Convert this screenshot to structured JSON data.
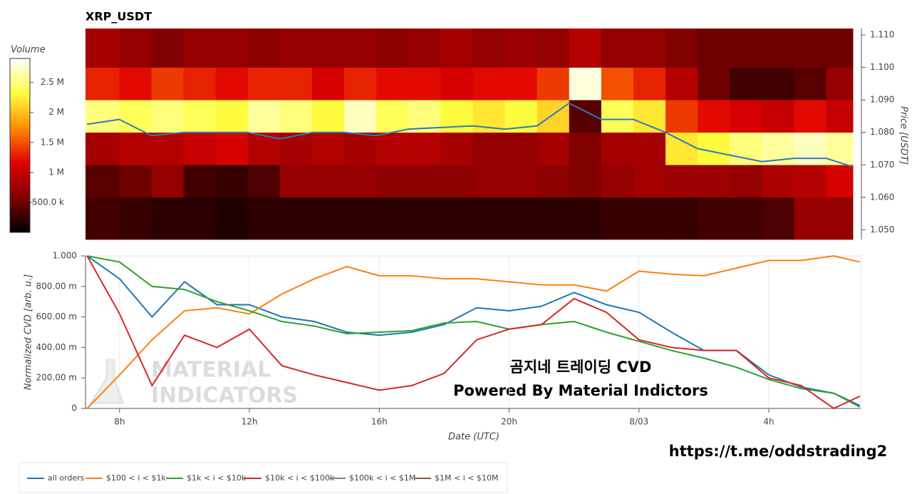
{
  "chart_data": [
    {
      "type": "heatmap",
      "title": "XRP_USDT",
      "colorbar_label": "Volume",
      "y2label": "Price [USDT]",
      "colormap": [
        "#000000",
        "#800000",
        "#e00000",
        "#ff8c00",
        "#ffff40",
        "#ffffff"
      ],
      "clim": [
        0,
        2900000
      ],
      "cticks": [
        {
          "value": 500000,
          "label": "500.0 k"
        },
        {
          "value": 1000000,
          "label": "1 M"
        },
        {
          "value": 1500000,
          "label": "1.5 M"
        },
        {
          "value": 2000000,
          "label": "2 M"
        },
        {
          "value": 2500000,
          "label": "2.5 M"
        }
      ],
      "xlim": [
        6.95,
        30.83
      ],
      "xbins": [
        6.95,
        8,
        9,
        10,
        11,
        12,
        13,
        14,
        15,
        16,
        17,
        18,
        19,
        20,
        21,
        22,
        23,
        24,
        25,
        26,
        27,
        28,
        29,
        30,
        30.83
      ],
      "y2lim": [
        1.047,
        1.112
      ],
      "ybins": [
        1.047,
        1.06,
        1.07,
        1.08,
        1.09,
        1.1,
        1.112
      ],
      "y2ticks": [
        {
          "value": 1.05,
          "label": "1.050"
        },
        {
          "value": 1.06,
          "label": "1.060"
        },
        {
          "value": 1.07,
          "label": "1.070"
        },
        {
          "value": 1.08,
          "label": "1.080"
        },
        {
          "value": 1.09,
          "label": "1.090"
        },
        {
          "value": 1.1,
          "label": "1.100"
        },
        {
          "value": 1.11,
          "label": "1.110"
        }
      ],
      "values": [
        [
          300000,
          250000,
          200000,
          200000,
          150000,
          200000,
          200000,
          200000,
          200000,
          200000,
          200000,
          200000,
          200000,
          200000,
          200000,
          200000,
          250000,
          250000,
          250000,
          300000,
          300000,
          350000,
          700000,
          700000
        ],
        [
          400000,
          500000,
          700000,
          300000,
          250000,
          350000,
          700000,
          700000,
          700000,
          650000,
          650000,
          650000,
          700000,
          700000,
          650000,
          600000,
          700000,
          800000,
          750000,
          750000,
          700000,
          850000,
          900000,
          1100000
        ],
        [
          800000,
          900000,
          900000,
          1000000,
          1100000,
          900000,
          800000,
          900000,
          800000,
          900000,
          900000,
          800000,
          700000,
          700000,
          800000,
          600000,
          800000,
          800000,
          2200000,
          2300000,
          2500000,
          2600000,
          2700000,
          2600000
        ],
        [
          2500000,
          2400000,
          2500000,
          2400000,
          2300000,
          2600000,
          2500000,
          2300000,
          2700000,
          2400000,
          2500000,
          2300000,
          2200000,
          2300000,
          2100000,
          400000,
          2400000,
          2200000,
          1400000,
          1200000,
          1100000,
          1000000,
          1200000,
          1000000
        ],
        [
          1300000,
          1200000,
          1400000,
          1300000,
          1200000,
          1300000,
          1300000,
          1100000,
          1300000,
          1200000,
          1200000,
          1100000,
          1200000,
          1200000,
          1400000,
          2800000,
          1500000,
          1300000,
          900000,
          500000,
          300000,
          300000,
          400000,
          700000
        ],
        [
          800000,
          700000,
          600000,
          700000,
          700000,
          650000,
          700000,
          700000,
          700000,
          650000,
          700000,
          800000,
          700000,
          750000,
          700000,
          900000,
          700000,
          700000,
          600000,
          500000,
          500000,
          500000,
          500000,
          500000
        ]
      ],
      "price": {
        "color": "#2b7bba",
        "x": [
          7,
          8,
          9,
          10,
          11,
          12,
          13,
          14,
          15,
          16,
          17,
          18,
          19,
          20,
          21,
          22,
          23,
          24,
          25,
          26,
          27,
          28,
          29,
          30,
          30.8
        ],
        "values": [
          1.0825,
          1.084,
          1.079,
          1.08,
          1.08,
          1.08,
          1.078,
          1.08,
          1.08,
          1.079,
          1.081,
          1.0815,
          1.082,
          1.081,
          1.082,
          1.089,
          1.084,
          1.084,
          1.08,
          1.075,
          1.073,
          1.071,
          1.072,
          1.072,
          1.0695
        ]
      }
    },
    {
      "type": "line",
      "xlabel": "Date (UTC)",
      "ylabel": "Normalized CVD [arb. u.]",
      "grid": "x",
      "xlim": [
        6.95,
        30.83
      ],
      "xticks": [
        {
          "value": 8,
          "label": "8h"
        },
        {
          "value": 12,
          "label": "12h"
        },
        {
          "value": 16,
          "label": "16h"
        },
        {
          "value": 20,
          "label": "20h"
        },
        {
          "value": 24,
          "label": "8/03"
        },
        {
          "value": 28,
          "label": "4h"
        }
      ],
      "ylim": [
        0,
        1.0
      ],
      "yticks": [
        0,
        {
          "value": 0.2,
          "label": "200.00 m"
        },
        {
          "value": 0.4,
          "label": "400.00 m"
        },
        {
          "value": 0.6,
          "label": "600.00 m"
        },
        {
          "value": 0.8,
          "label": "800.00 m"
        },
        {
          "value": 1.0,
          "label": "1.000"
        }
      ],
      "x": [
        7,
        8,
        9,
        10,
        11,
        12,
        13,
        14,
        15,
        16,
        17,
        18,
        19,
        20,
        21,
        22,
        23,
        24,
        25,
        26,
        27,
        28,
        29,
        30,
        30.8
      ],
      "series": [
        {
          "name": "all orders",
          "color": "#1f77b4",
          "values": [
            1.0,
            0.85,
            0.6,
            0.83,
            0.68,
            0.68,
            0.6,
            0.57,
            0.5,
            0.48,
            0.5,
            0.55,
            0.66,
            0.64,
            0.67,
            0.76,
            0.68,
            0.63,
            0.5,
            0.38,
            0.38,
            0.22,
            0.14,
            0.1,
            0.02
          ]
        },
        {
          "name": "$100 < i < $1k",
          "color": "#ff7f0e",
          "values": [
            0.0,
            0.22,
            0.45,
            0.64,
            0.66,
            0.62,
            0.75,
            0.85,
            0.93,
            0.87,
            0.87,
            0.85,
            0.85,
            0.83,
            0.81,
            0.81,
            0.77,
            0.9,
            0.88,
            0.87,
            0.92,
            0.97,
            0.97,
            1.0,
            0.96
          ]
        },
        {
          "name": "$1k < i < $10k",
          "color": "#2ca02c",
          "values": [
            1.0,
            0.96,
            0.8,
            0.78,
            0.7,
            0.64,
            0.57,
            0.54,
            0.49,
            0.5,
            0.51,
            0.56,
            0.57,
            0.52,
            0.55,
            0.57,
            0.5,
            0.44,
            0.38,
            0.33,
            0.27,
            0.19,
            0.13,
            0.1,
            0.01
          ]
        },
        {
          "name": "$10k < i < $100k",
          "color": "#d62728",
          "values": [
            1.0,
            0.62,
            0.15,
            0.48,
            0.4,
            0.52,
            0.28,
            0.22,
            0.17,
            0.12,
            0.15,
            0.23,
            0.45,
            0.52,
            0.55,
            0.72,
            0.63,
            0.45,
            0.4,
            0.38,
            0.38,
            0.2,
            0.15,
            0.0,
            0.08
          ]
        },
        {
          "name": "$100k < i < $1M",
          "color": "#7f7f7f",
          "values": [
            null,
            null,
            null,
            null,
            null,
            null,
            null,
            null,
            null,
            null,
            null,
            null,
            null,
            null,
            null,
            null,
            null,
            null,
            null,
            null,
            null,
            null,
            null,
            null,
            null
          ]
        },
        {
          "name": "$1M < i < $10M",
          "color": "#8c564b",
          "values": [
            null,
            null,
            null,
            null,
            null,
            null,
            null,
            null,
            null,
            null,
            null,
            null,
            null,
            null,
            null,
            null,
            null,
            null,
            null,
            null,
            null,
            null,
            null,
            null,
            null
          ]
        }
      ]
    }
  ],
  "watermark": [
    "MATERIAL",
    "INDICATORS"
  ],
  "overlay": [
    "곰지네 트레이딩 CVD",
    "Powered By Material Indictors"
  ],
  "url": "https://t.me/oddstrading2"
}
